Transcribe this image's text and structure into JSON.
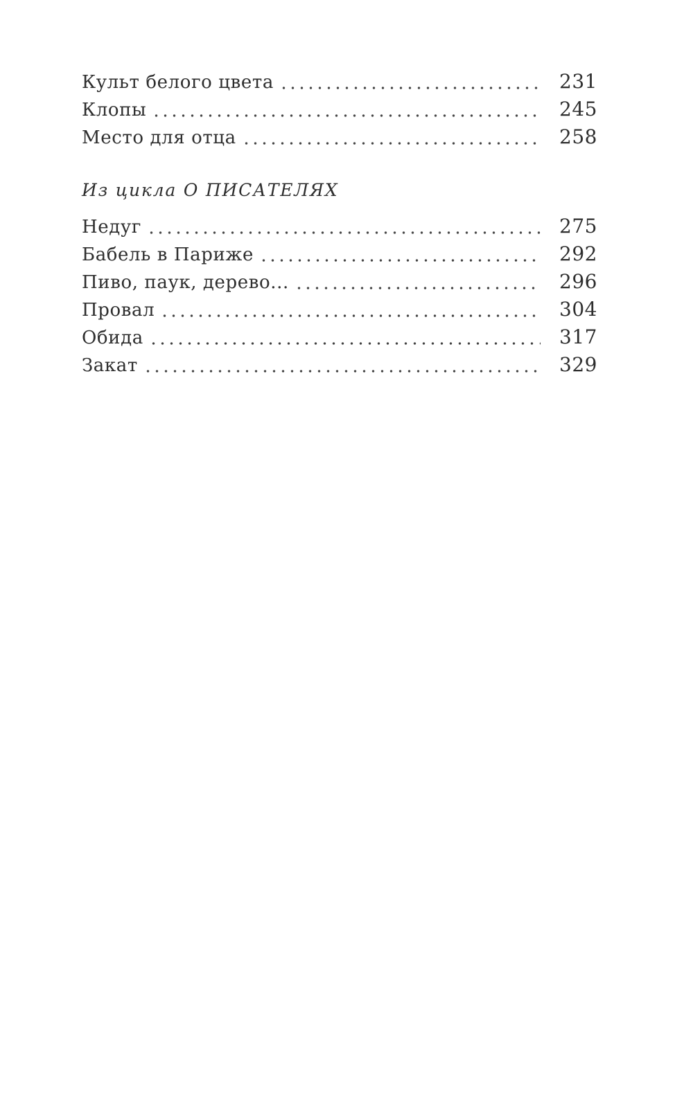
{
  "page": {
    "background_color": "#ffffff",
    "text_color": "#2e2e2e",
    "leader_dot_color": "#454545"
  },
  "toc": {
    "sections": [
      {
        "entries": [
          {
            "title": "Культ белого цвета",
            "page": "231"
          },
          {
            "title": "Клопы",
            "page": "245"
          },
          {
            "title": "Место для отца",
            "page": "258"
          }
        ]
      },
      {
        "heading": "Из цикла О ПИСАТЕЛЯХ",
        "entries": [
          {
            "title": "Недуг",
            "page": "275"
          },
          {
            "title": "Бабель в Париже",
            "page": "292"
          },
          {
            "title": "Пиво, паук, дерево...",
            "page": "296"
          },
          {
            "title": "Провал",
            "page": "304"
          },
          {
            "title": "Обида",
            "page": "317"
          },
          {
            "title": "Закат",
            "page": "329"
          }
        ]
      }
    ]
  }
}
